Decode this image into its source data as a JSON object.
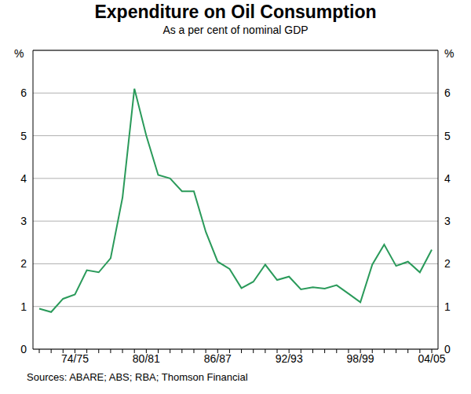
{
  "chart_data": {
    "type": "line",
    "title": "Expenditure on Oil Consumption",
    "subtitle": "As a per cent of nominal GDP",
    "y_label": "%",
    "source": "Sources: ABARE; ABS; RBA; Thomson Financial",
    "categories": [
      null,
      null,
      null,
      "74/75",
      null,
      null,
      null,
      null,
      null,
      "80/81",
      null,
      null,
      null,
      null,
      null,
      "86/87",
      null,
      null,
      null,
      null,
      null,
      "92/93",
      null,
      null,
      null,
      null,
      null,
      "98/99",
      null,
      null,
      null,
      null,
      null,
      "04/05"
    ],
    "values": [
      0.95,
      0.87,
      1.18,
      1.28,
      1.85,
      1.8,
      2.13,
      3.55,
      6.1,
      5.0,
      4.08,
      4.0,
      3.7,
      3.7,
      2.75,
      2.05,
      1.88,
      1.43,
      1.58,
      1.98,
      1.62,
      1.7,
      1.4,
      1.45,
      1.42,
      1.5,
      1.3,
      1.1,
      1.98,
      2.45,
      1.95,
      2.05,
      1.8,
      2.33
    ],
    "color": "#2a9a5a",
    "ylim": [
      0,
      7
    ],
    "yticks": [
      0,
      1,
      2,
      3,
      4,
      5,
      6
    ],
    "grid": true
  }
}
